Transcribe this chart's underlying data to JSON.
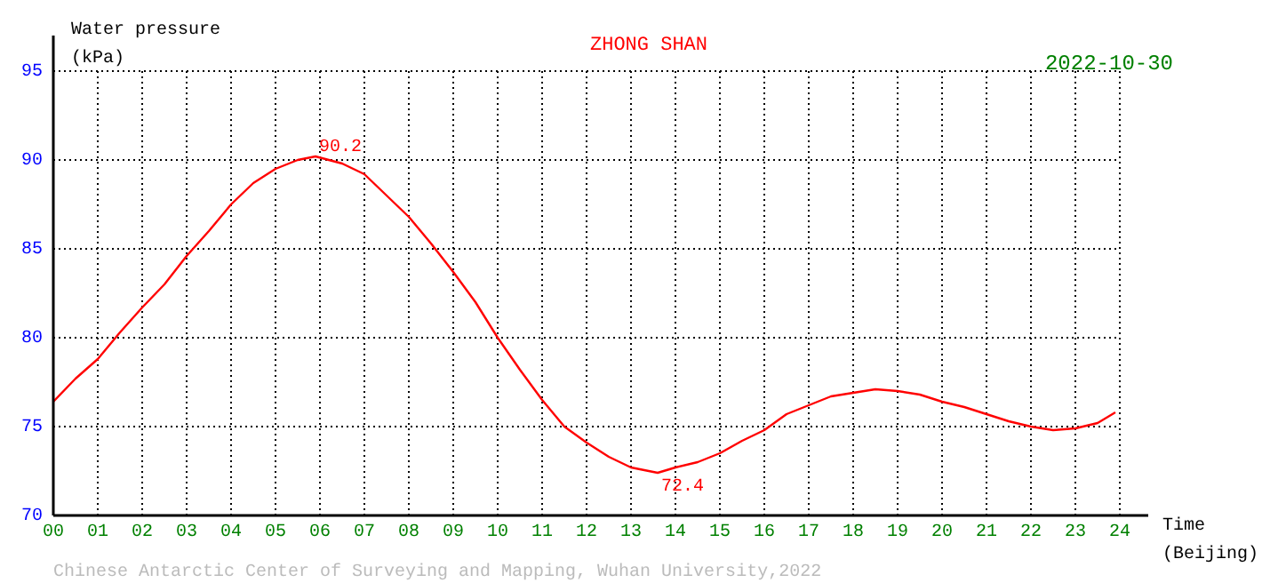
{
  "chart_data": {
    "type": "line",
    "title": "ZHONG SHAN",
    "ylabel": "Water pressure (kPa)",
    "xlabel": "Time (Beijing)",
    "annotations": [
      {
        "text": "90.2",
        "x": 5.9,
        "y": 90.2
      },
      {
        "text": "72.4",
        "x": 13.6,
        "y": 72.4
      },
      "2022-10-30",
      "Chinese Antarctic Center of Surveying and Mapping, Wuhan University,2022"
    ],
    "xlim": [
      0,
      24
    ],
    "xticks": [
      {
        "value": 0,
        "label": "00"
      },
      {
        "value": 1,
        "label": "01"
      },
      {
        "value": 2,
        "label": "02"
      },
      {
        "value": 3,
        "label": "03"
      },
      {
        "value": 4,
        "label": "04"
      },
      {
        "value": 5,
        "label": "05"
      },
      {
        "value": 6,
        "label": "06"
      },
      {
        "value": 7,
        "label": "07"
      },
      {
        "value": 8,
        "label": "08"
      },
      {
        "value": 9,
        "label": "09"
      },
      {
        "value": 10,
        "label": "10"
      },
      {
        "value": 11,
        "label": "11"
      },
      {
        "value": 12,
        "label": "12"
      },
      {
        "value": 13,
        "label": "13"
      },
      {
        "value": 14,
        "label": "14"
      },
      {
        "value": 15,
        "label": "15"
      },
      {
        "value": 16,
        "label": "16"
      },
      {
        "value": 17,
        "label": "17"
      },
      {
        "value": 18,
        "label": "18"
      },
      {
        "value": 19,
        "label": "19"
      },
      {
        "value": 20,
        "label": "20"
      },
      {
        "value": 21,
        "label": "21"
      },
      {
        "value": 22,
        "label": "22"
      },
      {
        "value": 23,
        "label": "23"
      },
      {
        "value": 24,
        "label": "24"
      }
    ],
    "ylim": [
      70,
      95
    ],
    "yticks": [
      70,
      75,
      80,
      85,
      90,
      95
    ],
    "grid": true,
    "legend": false,
    "marker": "none",
    "line_style": "solid",
    "x": [
      0,
      0.5,
      1,
      1.5,
      2,
      2.5,
      3,
      3.5,
      4,
      4.5,
      5,
      5.5,
      5.9,
      6.5,
      7,
      7.5,
      8,
      8.5,
      9,
      9.5,
      10,
      10.5,
      11,
      11.5,
      12,
      12.5,
      13,
      13.6,
      14,
      14.5,
      15,
      15.5,
      16,
      16.5,
      17,
      17.5,
      18,
      18.5,
      19,
      19.5,
      20,
      20.5,
      21,
      21.5,
      22,
      22.5,
      23,
      23.5,
      23.9
    ],
    "series": [
      {
        "color": "#ff0000",
        "values": [
          76.4,
          77.7,
          78.8,
          80.3,
          81.7,
          83.0,
          84.6,
          86.0,
          87.5,
          88.7,
          89.5,
          90.0,
          90.2,
          89.8,
          89.2,
          88.0,
          86.8,
          85.3,
          83.7,
          82.0,
          80.0,
          78.2,
          76.5,
          75.0,
          74.1,
          73.3,
          72.7,
          72.4,
          72.7,
          73.0,
          73.5,
          74.2,
          74.8,
          75.7,
          76.2,
          76.7,
          76.9,
          77.1,
          77.0,
          76.8,
          76.4,
          76.1,
          75.7,
          75.3,
          75.0,
          74.8,
          74.9,
          75.2,
          75.8
        ]
      }
    ]
  }
}
